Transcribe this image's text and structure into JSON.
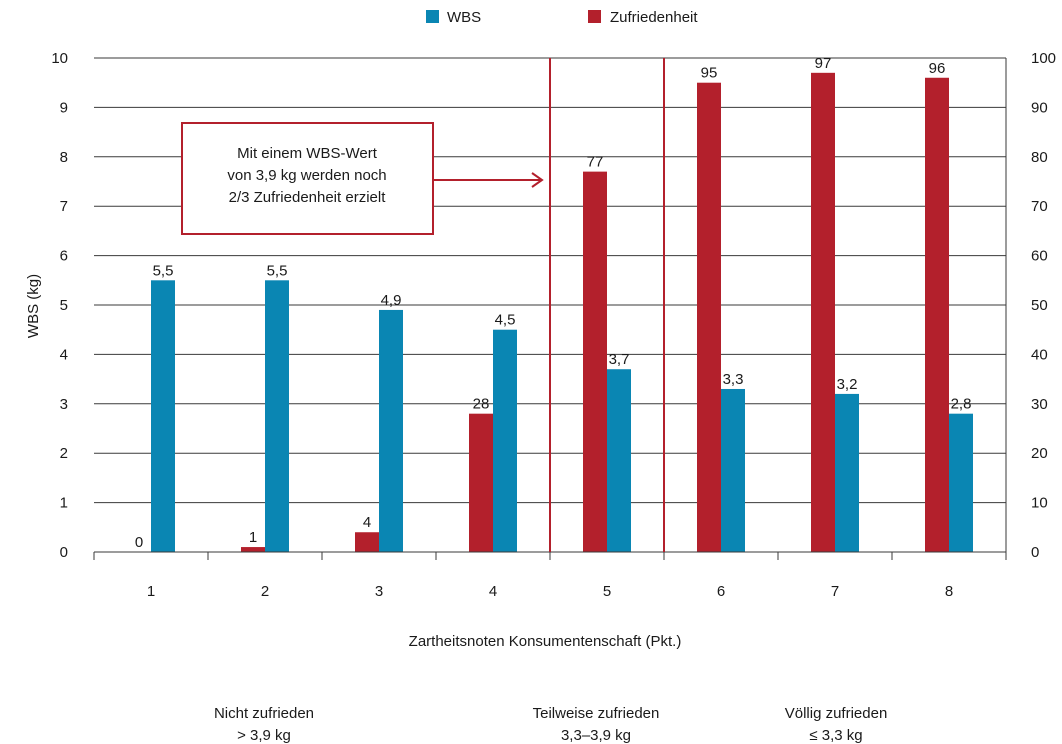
{
  "chart_data": {
    "type": "bar",
    "categories": [
      "1",
      "2",
      "3",
      "4",
      "5",
      "6",
      "7",
      "8"
    ],
    "series": [
      {
        "name": "WBS",
        "axis": "left",
        "color": "#0a86b3",
        "values": [
          5.5,
          5.5,
          4.9,
          4.5,
          3.7,
          3.3,
          3.2,
          2.8
        ],
        "labels": [
          "5,5",
          "5,5",
          "4,9",
          "4,5",
          "3,7",
          "3,3",
          "3,2",
          "2,8"
        ]
      },
      {
        "name": "Zufriedenheit",
        "axis": "right",
        "color": "#b3202c",
        "values": [
          0,
          1,
          4,
          28,
          77,
          95,
          97,
          96
        ],
        "labels": [
          "0",
          "1",
          "4",
          "28",
          "77",
          "95",
          "97",
          "96"
        ]
      }
    ],
    "xlabel": "Zartheitsnoten Konsumentenschaft (Pkt.)",
    "ylabel": "WBS (kg)",
    "ylim": [
      0,
      10
    ],
    "y2lim": [
      0,
      100
    ],
    "yticks": [
      "0",
      "1",
      "2",
      "3",
      "4",
      "5",
      "6",
      "7",
      "8",
      "9",
      "10"
    ],
    "y2ticks": [
      "0",
      "10",
      "20",
      "30",
      "40",
      "50",
      "60",
      "70",
      "80",
      "90",
      "100"
    ],
    "grid": true,
    "legend": "top-center",
    "dividers_between": [
      [
        4,
        5
      ],
      [
        5,
        6
      ]
    ],
    "annotation": {
      "lines": [
        "Mit einem WBS-Wert",
        "von 3,9 kg werden noch",
        "2/3 Zufriedenheit erzielt"
      ],
      "points_to_category": "5"
    },
    "groups": [
      {
        "line1": "Nicht zufrieden",
        "line2": "> 3,9 kg"
      },
      {
        "line1": "Teilweise zufrieden",
        "line2": "3,3–3,9 kg"
      },
      {
        "line1": "Völlig zufrieden",
        "line2": "≤ 3,3 kg"
      }
    ]
  }
}
